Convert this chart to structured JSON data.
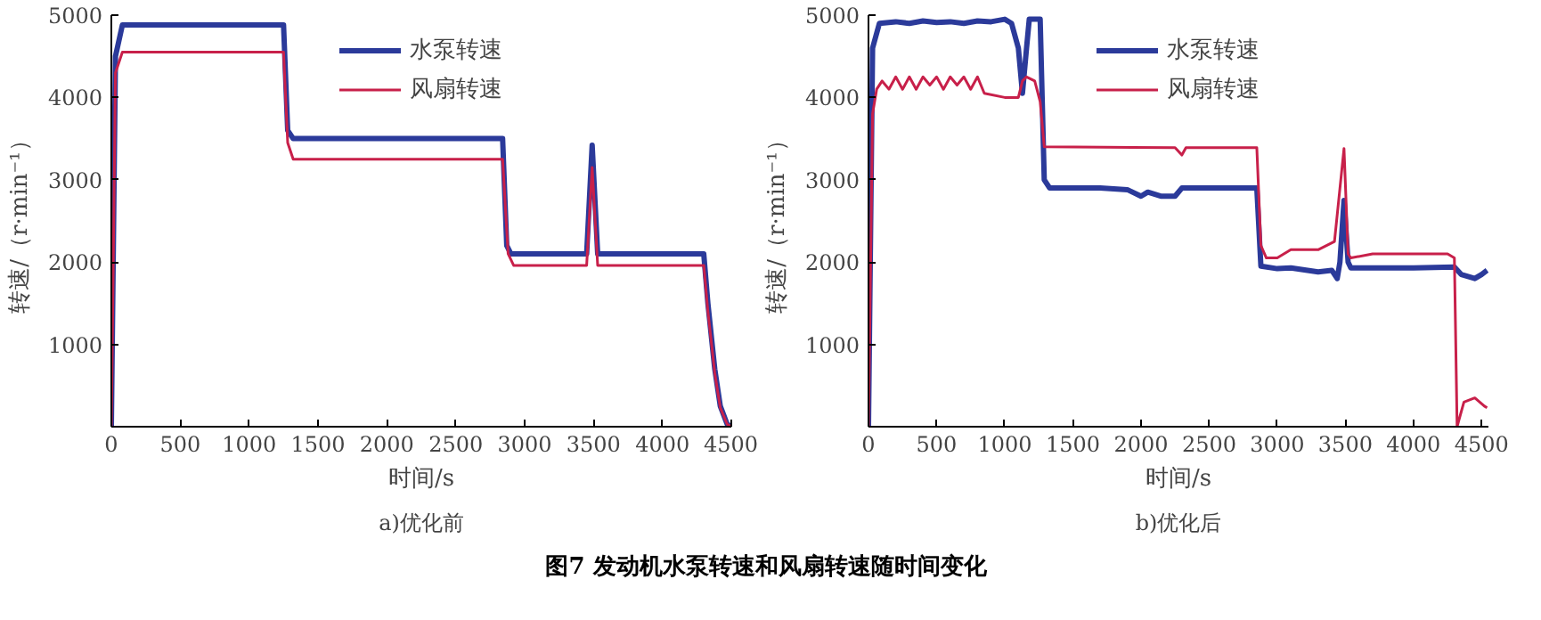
{
  "chart_data": [
    {
      "type": "line",
      "subtitle": "a)优化前",
      "xlabel": "时间/s",
      "ylabel": "转速/（r·min⁻¹）",
      "xlim": [
        0,
        4500
      ],
      "ylim": [
        0,
        5000
      ],
      "xticks": [
        0,
        500,
        1000,
        1500,
        2000,
        2500,
        3000,
        3500,
        4000,
        4500
      ],
      "yticks": [
        1000,
        2000,
        3000,
        4000,
        5000
      ],
      "grid": false,
      "legend": "top",
      "annotations": [
        "图7  发动机水泵转速和风扇转速随时间变化"
      ],
      "series": [
        {
          "name": "水泵转速",
          "color": "#2b3a9a",
          "x": [
            0,
            30,
            80,
            1250,
            1280,
            1320,
            2840,
            2870,
            2900,
            3450,
            3490,
            3530,
            4300,
            4330,
            4380,
            4420,
            4470,
            4500
          ],
          "values": [
            0,
            4500,
            4880,
            4880,
            3600,
            3500,
            3500,
            2200,
            2100,
            2100,
            3420,
            2100,
            2100,
            1500,
            700,
            250,
            30,
            0
          ]
        },
        {
          "name": "风扇转速",
          "color": "#c8204a",
          "x": [
            0,
            30,
            80,
            1250,
            1280,
            1320,
            2840,
            2880,
            2920,
            3450,
            3490,
            3530,
            4300,
            4330,
            4380,
            4420,
            4470,
            4500
          ],
          "values": [
            0,
            4300,
            4550,
            4550,
            3450,
            3250,
            3250,
            2100,
            1960,
            1960,
            3150,
            1960,
            1960,
            1400,
            650,
            230,
            30,
            0
          ]
        }
      ]
    },
    {
      "type": "line",
      "subtitle": "b)优化后",
      "xlabel": "时间/s",
      "ylabel": "转速/（r·min⁻¹）",
      "xlim": [
        0,
        4550
      ],
      "ylim": [
        0,
        5000
      ],
      "xticks": [
        0,
        500,
        1000,
        1500,
        2000,
        2500,
        3000,
        3500,
        4000,
        4500
      ],
      "yticks": [
        1000,
        2000,
        3000,
        4000,
        5000
      ],
      "grid": false,
      "legend": "top",
      "series": [
        {
          "name": "水泵转速",
          "color": "#2b3a9a",
          "x": [
            0,
            30,
            80,
            200,
            300,
            400,
            500,
            600,
            700,
            800,
            900,
            1000,
            1050,
            1100,
            1130,
            1160,
            1180,
            1260,
            1290,
            1330,
            1500,
            1700,
            1900,
            2000,
            2050,
            2150,
            2250,
            2300,
            2500,
            2850,
            2880,
            3000,
            3100,
            3300,
            3400,
            3440,
            3460,
            3490,
            3520,
            3540,
            4000,
            4300,
            4350,
            4450,
            4500,
            4540
          ],
          "values": [
            0,
            4600,
            4900,
            4920,
            4900,
            4930,
            4910,
            4920,
            4900,
            4930,
            4920,
            4950,
            4900,
            4600,
            4050,
            4600,
            4950,
            4950,
            3000,
            2900,
            2900,
            2900,
            2880,
            2800,
            2850,
            2800,
            2800,
            2900,
            2900,
            2900,
            1950,
            1920,
            1930,
            1880,
            1900,
            1800,
            2000,
            2750,
            2000,
            1930,
            1930,
            1940,
            1850,
            1800,
            1850,
            1900
          ]
        },
        {
          "name": "风扇转速",
          "color": "#c8204a",
          "x": [
            0,
            30,
            60,
            100,
            150,
            200,
            250,
            300,
            350,
            400,
            450,
            500,
            550,
            600,
            650,
            700,
            750,
            800,
            850,
            1000,
            1100,
            1130,
            1160,
            1220,
            1260,
            1290,
            2250,
            2300,
            2330,
            2850,
            2880,
            2920,
            3000,
            3100,
            3200,
            3300,
            3420,
            3490,
            3520,
            3540,
            3700,
            3900,
            4100,
            4250,
            4300,
            4320,
            4370,
            4450,
            4520,
            4540
          ],
          "values": [
            0,
            3800,
            4100,
            4200,
            4100,
            4250,
            4100,
            4250,
            4100,
            4250,
            4150,
            4250,
            4100,
            4250,
            4150,
            4250,
            4100,
            4250,
            4050,
            4000,
            4000,
            4200,
            4250,
            4200,
            3950,
            3400,
            3390,
            3300,
            3390,
            3390,
            2200,
            2050,
            2050,
            2150,
            2150,
            2150,
            2250,
            3380,
            2100,
            2050,
            2100,
            2100,
            2100,
            2100,
            2050,
            0,
            300,
            350,
            250,
            230
          ]
        }
      ]
    }
  ]
}
